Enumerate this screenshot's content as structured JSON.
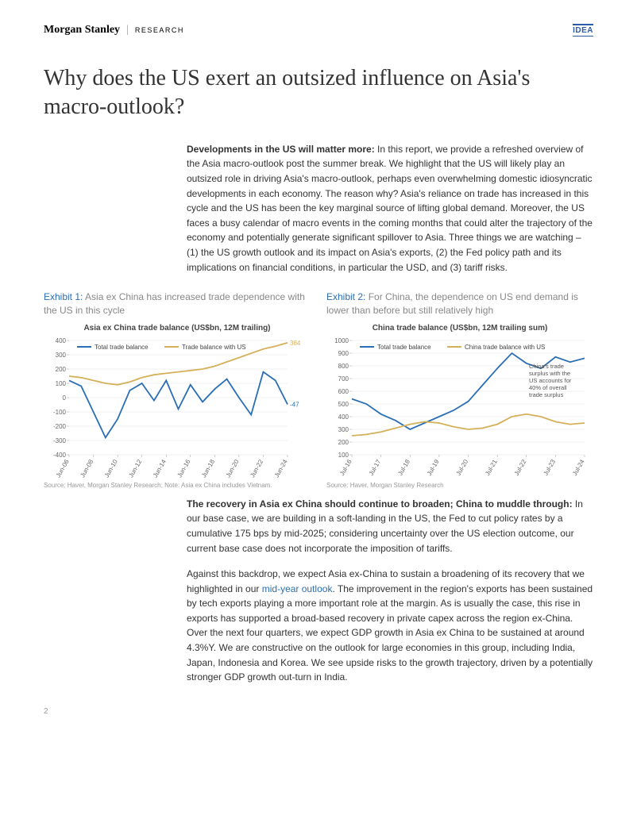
{
  "header": {
    "brand": "Morgan Stanley",
    "brand_sub": "RESEARCH",
    "badge": "IDEA"
  },
  "title": "Why does the US exert an outsized influence on Asia's macro-outlook?",
  "intro": {
    "lead": "Developments in the US will matter more:",
    "body": " In this report, we provide a refreshed overview of the Asia macro-outlook post the summer break. We highlight that the US will likely play an outsized role in driving Asia's macro-outlook, perhaps even overwhelming domestic idiosyncratic developments in each economy. The reason why? Asia's reliance on trade has increased in this cycle and the US has been the key marginal source of lifting global demand. Moreover, the US faces a busy calendar of macro events in the coming months that could alter the trajectory of the economy and potentially generate significant spillover to Asia. Three things we are watching – (1) the US growth outlook and its impact on Asia's exports, (2) the Fed policy path and its implications on financial conditions, in particular the USD, and (3) tariff risks."
  },
  "exhibit1": {
    "num": "Exhibit 1:",
    "title": "Asia ex China has increased trade dependence with the US in this cycle",
    "chart_title": "Asia ex China trade balance (US$bn, 12M trailing)",
    "legend": {
      "s1": "Total trade balance",
      "s2": "Trade balance with US"
    },
    "ylim": [
      -400,
      400
    ],
    "ytick_step": 100,
    "x_labels": [
      "Jun-06",
      "Jun-08",
      "Jun-10",
      "Jun-12",
      "Jun-14",
      "Jun-16",
      "Jun-18",
      "Jun-20",
      "Jun-22",
      "Jun-24"
    ],
    "s1_values": [
      120,
      80,
      -100,
      -280,
      -150,
      50,
      100,
      -20,
      120,
      -80,
      90,
      -30,
      60,
      130,
      0,
      -120,
      180,
      120,
      -47
    ],
    "s2_values": [
      150,
      140,
      120,
      100,
      90,
      110,
      140,
      160,
      170,
      180,
      190,
      200,
      220,
      250,
      280,
      310,
      340,
      360,
      384
    ],
    "end_label_s1": "-47",
    "end_label_s2": "384",
    "colors": {
      "s1": "#2a6fb5",
      "s2": "#d4b05a",
      "grid": "#e0e0e0",
      "axis": "#999",
      "text": "#666"
    },
    "source": "Source: Haver, Morgan Stanley Research; Note: Asia ex China includes Vietnam."
  },
  "exhibit2": {
    "num": "Exhibit 2:",
    "title": "For China, the dependence on US end demand is lower than before but still relatively high",
    "chart_title": "China trade balance (US$bn, 12M trailing sum)",
    "legend": {
      "s1": "Total trade balance",
      "s2": "China trade balance with US"
    },
    "ylim": [
      100,
      1000
    ],
    "ytick_step": 100,
    "x_labels": [
      "Jul-16",
      "Jul-17",
      "Jul-18",
      "Jul-19",
      "Jul-20",
      "Jul-21",
      "Jul-22",
      "Jul-23",
      "Jul-24"
    ],
    "s1_values": [
      540,
      500,
      420,
      370,
      300,
      350,
      400,
      450,
      520,
      650,
      780,
      900,
      820,
      780,
      870,
      830,
      860
    ],
    "s2_values": [
      250,
      260,
      280,
      310,
      340,
      360,
      350,
      320,
      300,
      310,
      340,
      400,
      420,
      400,
      360,
      340,
      350
    ],
    "annotation": "China's trade surplus with the US accounts for 40% of overall trade surplus",
    "colors": {
      "s1": "#2a6fb5",
      "s2": "#d4b05a",
      "grid": "#e0e0e0",
      "axis": "#999",
      "text": "#666"
    },
    "source": "Source: Haver, Morgan Stanley Research"
  },
  "para2": {
    "lead": "The recovery in Asia ex China should continue to broaden; China to muddle through:",
    "body": " In our base case, we are building in a soft-landing in the US, the Fed to cut policy rates by a cumulative 175 bps by mid-2025; considering uncertainty over the US election outcome, our current base case does not incorporate the imposition of tariffs."
  },
  "para3": {
    "pre": "Against this backdrop, we expect Asia ex-China to sustain a broadening of its recovery that we highlighted in our ",
    "link": "mid-year outlook",
    "post": ". The improvement in the region's exports has been sustained by tech exports playing a more important role at the margin. As is usually the case, this rise in exports has supported a broad-based recovery in private capex across the region ex-China. Over the next four quarters, we expect GDP growth in Asia ex China to be sustained at around 4.3%Y. We are constructive on the outlook for large economies in this group, including India, Japan, Indonesia and Korea. We see upside risks to the growth trajectory, driven by a potentially stronger GDP growth out-turn in India."
  },
  "page_num": "2"
}
